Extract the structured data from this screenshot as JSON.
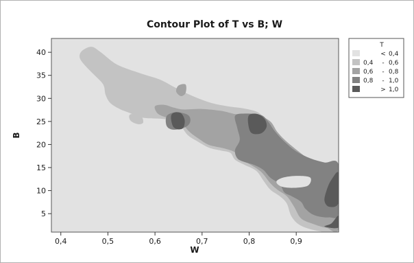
{
  "chart_data": {
    "type": "contour",
    "title": "Contour Plot of T vs B; W",
    "xlabel": "W",
    "ylabel": "B",
    "xlim": [
      0.38,
      0.99
    ],
    "ylim": [
      1,
      43
    ],
    "x_ticks": [
      "0,4",
      "0,5",
      "0,6",
      "0,7",
      "0,8",
      "0,9"
    ],
    "x_tick_values": [
      0.4,
      0.5,
      0.6,
      0.7,
      0.8,
      0.9
    ],
    "y_ticks": [
      "5",
      "10",
      "15",
      "20",
      "25",
      "30",
      "35",
      "40"
    ],
    "y_tick_values": [
      5,
      10,
      15,
      20,
      25,
      30,
      35,
      40
    ],
    "grid": false,
    "legend": {
      "title": "T",
      "placement": "right",
      "entries": [
        {
          "op": "<",
          "lo": "",
          "hi": "0,4",
          "color": "#e2e2e2"
        },
        {
          "op": "-",
          "lo": "0,4",
          "hi": "0,6",
          "color": "#c3c3c3"
        },
        {
          "op": "-",
          "lo": "0,6",
          "hi": "0,8",
          "color": "#a3a3a3"
        },
        {
          "op": "-",
          "lo": "0,8",
          "hi": "1,0",
          "color": "#828282"
        },
        {
          "op": ">",
          "lo": "",
          "hi": "1,0",
          "color": "#5a5a5a"
        }
      ]
    },
    "bands": [
      {
        "level": "0,4 - 0,6",
        "color": "#c3c3c3",
        "shapes": [
          [
            [
              0.445,
              40.3
            ],
            [
              0.465,
              41.2
            ],
            [
              0.485,
              40.0
            ],
            [
              0.52,
              37.3
            ],
            [
              0.57,
              35.4
            ],
            [
              0.61,
              34.1
            ],
            [
              0.64,
              32.5
            ],
            [
              0.68,
              30.5
            ],
            [
              0.72,
              29.0
            ],
            [
              0.76,
              28.2
            ],
            [
              0.79,
              27.8
            ],
            [
              0.82,
              26.9
            ],
            [
              0.84,
              24.7
            ],
            [
              0.86,
              22.4
            ],
            [
              0.89,
              19.5
            ],
            [
              0.92,
              17.0
            ],
            [
              0.95,
              15.4
            ],
            [
              0.975,
              15.2
            ],
            [
              0.99,
              14.5
            ],
            [
              0.99,
              1.2
            ],
            [
              0.95,
              1.2
            ],
            [
              0.91,
              2.4
            ],
            [
              0.89,
              4.4
            ],
            [
              0.88,
              7.2
            ],
            [
              0.865,
              8.8
            ],
            [
              0.845,
              10.2
            ],
            [
              0.83,
              12.2
            ],
            [
              0.815,
              14.3
            ],
            [
              0.79,
              15.6
            ],
            [
              0.77,
              16.7
            ],
            [
              0.76,
              18.2
            ],
            [
              0.74,
              18.7
            ],
            [
              0.715,
              19.3
            ],
            [
              0.69,
              20.7
            ],
            [
              0.67,
              22.0
            ],
            [
              0.655,
              23.9
            ],
            [
              0.635,
              25.2
            ],
            [
              0.61,
              25.6
            ],
            [
              0.585,
              25.7
            ],
            [
              0.565,
              26.0
            ],
            [
              0.545,
              26.9
            ],
            [
              0.525,
              27.7
            ],
            [
              0.505,
              29.0
            ],
            [
              0.495,
              30.8
            ],
            [
              0.49,
              33.0
            ],
            [
              0.47,
              35.2
            ],
            [
              0.45,
              37.3
            ],
            [
              0.44,
              38.9
            ]
          ],
          [
            [
              0.55,
              26.6
            ],
            [
              0.57,
              26.2
            ],
            [
              0.575,
              24.8
            ],
            [
              0.565,
              24.4
            ],
            [
              0.55,
              25.0
            ],
            [
              0.545,
              26.0
            ]
          ]
        ]
      },
      {
        "level": "0,6 - 0,8",
        "color": "#a3a3a3",
        "shapes": [
          [
            [
              0.6,
              28.3
            ],
            [
              0.62,
              28.6
            ],
            [
              0.64,
              28.0
            ],
            [
              0.66,
              27.6
            ],
            [
              0.7,
              27.7
            ],
            [
              0.74,
              27.3
            ],
            [
              0.77,
              26.6
            ],
            [
              0.79,
              26.6
            ],
            [
              0.82,
              26.3
            ],
            [
              0.845,
              25.0
            ],
            [
              0.86,
              22.7
            ],
            [
              0.88,
              20.6
            ],
            [
              0.91,
              18.1
            ],
            [
              0.935,
              16.3
            ],
            [
              0.96,
              15.6
            ],
            [
              0.985,
              15.0
            ],
            [
              0.99,
              14.2
            ],
            [
              0.99,
              1.9
            ],
            [
              0.965,
              1.9
            ],
            [
              0.935,
              2.8
            ],
            [
              0.91,
              4.0
            ],
            [
              0.895,
              6.6
            ],
            [
              0.88,
              8.8
            ],
            [
              0.86,
              10.2
            ],
            [
              0.845,
              11.6
            ],
            [
              0.825,
              14.1
            ],
            [
              0.8,
              15.8
            ],
            [
              0.78,
              16.8
            ],
            [
              0.77,
              18.3
            ],
            [
              0.745,
              19.2
            ],
            [
              0.715,
              19.9
            ],
            [
              0.695,
              21.1
            ],
            [
              0.675,
              22.6
            ],
            [
              0.66,
              24.2
            ],
            [
              0.645,
              25.4
            ],
            [
              0.62,
              26.0
            ],
            [
              0.605,
              26.8
            ]
          ],
          [
            [
              0.65,
              32.8
            ],
            [
              0.665,
              33.0
            ],
            [
              0.665,
              31.2
            ],
            [
              0.655,
              30.5
            ],
            [
              0.645,
              31.5
            ]
          ]
        ]
      },
      {
        "level": "0,8 - 1,0",
        "color": "#828282",
        "shapes": [
          [
            [
              0.77,
              26.2
            ],
            [
              0.79,
              26.7
            ],
            [
              0.825,
              26.4
            ],
            [
              0.84,
              25.0
            ],
            [
              0.855,
              22.8
            ],
            [
              0.875,
              20.6
            ],
            [
              0.9,
              18.5
            ],
            [
              0.93,
              17.0
            ],
            [
              0.96,
              16.1
            ],
            [
              0.99,
              15.6
            ],
            [
              0.99,
              5.2
            ],
            [
              0.97,
              4.2
            ],
            [
              0.94,
              4.6
            ],
            [
              0.92,
              6.0
            ],
            [
              0.91,
              7.6
            ],
            [
              0.89,
              8.8
            ],
            [
              0.875,
              9.6
            ],
            [
              0.865,
              11.4
            ],
            [
              0.845,
              12.8
            ],
            [
              0.83,
              14.5
            ],
            [
              0.81,
              15.6
            ],
            [
              0.79,
              16.2
            ],
            [
              0.775,
              17.0
            ],
            [
              0.77,
              18.8
            ],
            [
              0.78,
              21.0
            ],
            [
              0.775,
              23.5
            ]
          ],
          [
            [
              0.625,
              24.0
            ],
            [
              0.64,
              23.2
            ],
            [
              0.665,
              23.8
            ],
            [
              0.675,
              25.0
            ],
            [
              0.67,
              26.4
            ],
            [
              0.645,
              27.0
            ],
            [
              0.625,
              26.2
            ]
          ]
        ]
      },
      {
        "level": "> 1,0",
        "color": "#5a5a5a",
        "shapes": [
          [
            [
              0.634,
              26.0
            ],
            [
              0.638,
              24.0
            ],
            [
              0.648,
              23.3
            ],
            [
              0.66,
              23.6
            ],
            [
              0.663,
              25.3
            ],
            [
              0.655,
              26.8
            ],
            [
              0.64,
              26.9
            ]
          ],
          [
            [
              0.798,
              24.5
            ],
            [
              0.8,
              26.4
            ],
            [
              0.818,
              26.6
            ],
            [
              0.833,
              25.5
            ],
            [
              0.837,
              23.8
            ],
            [
              0.825,
              22.4
            ],
            [
              0.805,
              22.5
            ]
          ],
          [
            [
              0.99,
              13.8
            ],
            [
              0.975,
              12.4
            ],
            [
              0.965,
              10.2
            ],
            [
              0.96,
              7.8
            ],
            [
              0.97,
              6.5
            ],
            [
              0.99,
              7.4
            ]
          ],
          [
            [
              0.99,
              4.6
            ],
            [
              0.975,
              2.9
            ],
            [
              0.96,
              2.2
            ],
            [
              0.99,
              2.0
            ]
          ]
        ]
      },
      {
        "level": "< 0,4",
        "color": "#e2e2e2",
        "shapes": [
          [
            [
              0.858,
              12.0
            ],
            [
              0.875,
              12.9
            ],
            [
              0.905,
              13.2
            ],
            [
              0.93,
              12.8
            ],
            [
              0.925,
              11.1
            ],
            [
              0.895,
              10.6
            ],
            [
              0.868,
              10.9
            ]
          ]
        ]
      }
    ]
  }
}
